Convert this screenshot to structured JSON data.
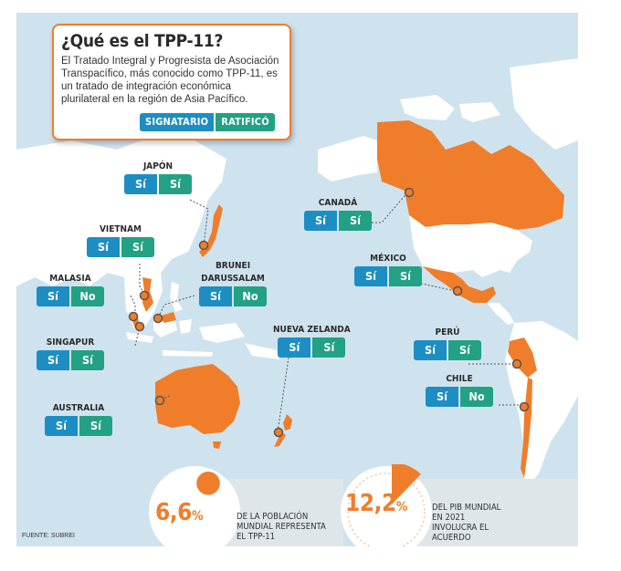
{
  "header": {
    "title": "¿Qué es el TPP-11?",
    "description": "El Tratado Integral y Progresista de Asociación Transpacífico, más conocido como TPP-11, es un tratado de integración económica plurilateral en la región de Asia Pacífico.",
    "legend_signatario": "SIGNATARIO",
    "legend_ratifico": "RATIFICÓ"
  },
  "countries": {
    "japon": {
      "name": "JAPÓN",
      "signatario": "Sí",
      "ratifico": "Sí"
    },
    "vietnam": {
      "name": "VIETNAM",
      "signatario": "Sí",
      "ratifico": "Sí"
    },
    "malasia": {
      "name": "MALASIA",
      "signatario": "Sí",
      "ratifico": "No"
    },
    "singapur": {
      "name": "SINGAPUR",
      "signatario": "Sí",
      "ratifico": "Sí"
    },
    "australia": {
      "name": "AUSTRALIA",
      "signatario": "Sí",
      "ratifico": "Sí"
    },
    "brunei": {
      "name_line1": "BRUNEI",
      "name_line2": "DARUSSALAM",
      "signatario": "Sí",
      "ratifico": "No"
    },
    "canada": {
      "name": "CANADÁ",
      "signatario": "Sí",
      "ratifico": "Sí"
    },
    "mexico": {
      "name": "MÉXICO",
      "signatario": "Sí",
      "ratifico": "Sí"
    },
    "nueva_zelanda": {
      "name": "NUEVA ZELANDA",
      "signatario": "Sí",
      "ratifico": "Sí"
    },
    "peru": {
      "name": "PERÚ",
      "signatario": "Sí",
      "ratifico": "Sí"
    },
    "chile": {
      "name": "CHILE",
      "signatario": "Sí",
      "ratifico": "No"
    }
  },
  "stats": {
    "population": {
      "value": "6,6",
      "unit": "%",
      "fraction": 0.066,
      "line1": "DE LA POBLACIÓN",
      "line2": "MUNDIAL REPRESENTA",
      "line3": "EL TPP-11"
    },
    "gdp": {
      "value": "12,2",
      "unit": "%",
      "fraction": 0.122,
      "line1": "DEL PIB MUNDIAL",
      "line2": "EN 2021",
      "line3": "INVOLUCRA EL",
      "line4": "ACUERDO"
    }
  },
  "source": "FUENTE: SUBREI",
  "colors": {
    "orange": "#f07d2a",
    "blue": "#1c8ec4",
    "green": "#22a184",
    "land": "#ffffff",
    "ocean": "#cfe3ee"
  }
}
